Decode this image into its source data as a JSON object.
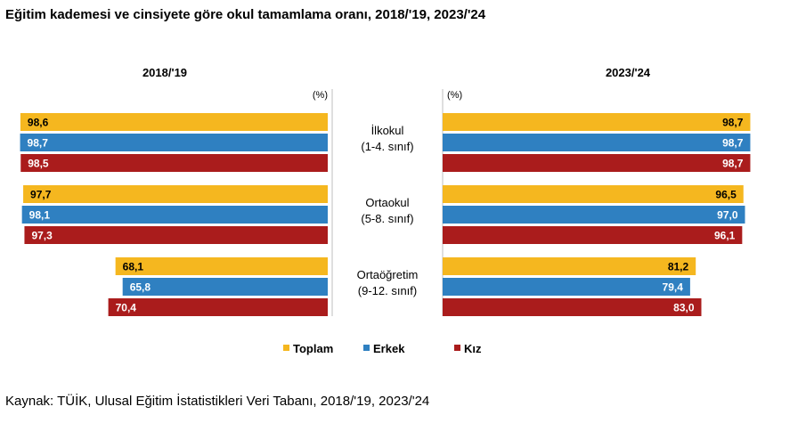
{
  "title": "Eğitim kademesi ve cinsiyete göre okul tamamlama oranı, 2018/'19, 2023/'24",
  "source": "Kaynak: TÜİK, Ulusal Eğitim İstatistikleri Veri Tabanı, 2018/'19, 2023/'24",
  "unit": "(%)",
  "colors": {
    "Toplam": "#f5b71f",
    "Erkek": "#2f80c1",
    "Kız": "#aa1c1c"
  },
  "chart_data": {
    "type": "bar",
    "orientation": "horizontal",
    "layout": "back-to-back",
    "unit": "(%)",
    "categories": [
      {
        "name": "İlkokul",
        "detail": "(1-4. sınıf)"
      },
      {
        "name": "Ortaokul",
        "detail": "(5-8. sınıf)"
      },
      {
        "name": "Ortaöğretim",
        "detail": "(9-12. sınıf)"
      }
    ],
    "panels": [
      {
        "period": "2018/'19",
        "direction": "left",
        "series": [
          {
            "name": "Toplam",
            "values": [
              98.6,
              97.7,
              68.1
            ],
            "labels": [
              "98,6",
              "97,7",
              "68,1"
            ]
          },
          {
            "name": "Erkek",
            "values": [
              98.7,
              98.1,
              65.8
            ],
            "labels": [
              "98,7",
              "98,1",
              "65,8"
            ]
          },
          {
            "name": "Kız",
            "values": [
              98.5,
              97.3,
              70.4
            ],
            "labels": [
              "98,5",
              "97,3",
              "70,4"
            ]
          }
        ]
      },
      {
        "period": "2023/'24",
        "direction": "right",
        "series": [
          {
            "name": "Toplam",
            "values": [
              98.7,
              96.5,
              81.2
            ],
            "labels": [
              "98,7",
              "96,5",
              "81,2"
            ]
          },
          {
            "name": "Erkek",
            "values": [
              98.7,
              97.0,
              79.4
            ],
            "labels": [
              "98,7",
              "97,0",
              "79,4"
            ]
          },
          {
            "name": "Kız",
            "values": [
              98.7,
              96.1,
              83.0
            ],
            "labels": [
              "98,7",
              "96,1",
              "83,0"
            ]
          }
        ]
      }
    ],
    "legend": {
      "position": "bottom",
      "entries": [
        "Toplam",
        "Erkek",
        "Kız"
      ]
    }
  }
}
